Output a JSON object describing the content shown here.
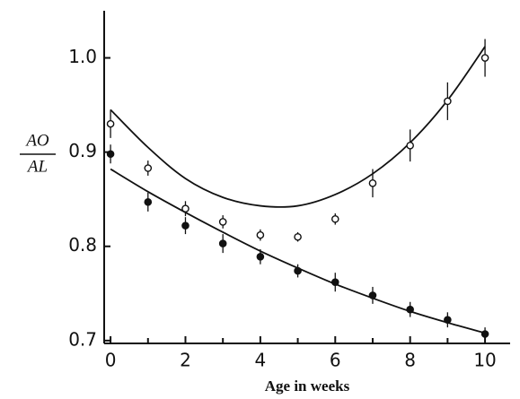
{
  "chart_data": {
    "type": "scatter",
    "x_label": "Age in weeks",
    "y_label_numerator": "AO",
    "y_label_denominator": "AL",
    "x": [
      0,
      1,
      2,
      3,
      4,
      5,
      6,
      7,
      8,
      9,
      10
    ],
    "series": [
      {
        "color": "#111",
        "marker": "open",
        "values": [
          0.93,
          0.883,
          0.84,
          0.826,
          0.812,
          0.81,
          0.829,
          0.867,
          0.907,
          0.954,
          1.0
        ],
        "errors": [
          0.015,
          0.008,
          0.008,
          0.007,
          0.006,
          0.005,
          0.006,
          0.015,
          0.017,
          0.02,
          0.02
        ],
        "fit": [
          0.945,
          0.905,
          0.872,
          0.852,
          0.843,
          0.843,
          0.855,
          0.877,
          0.91,
          0.955,
          1.012
        ]
      },
      {
        "color": "#111",
        "marker": "filled",
        "values": [
          0.898,
          0.847,
          0.822,
          0.803,
          0.789,
          0.774,
          0.762,
          0.748,
          0.733,
          0.722,
          0.707
        ],
        "errors": [
          0.01,
          0.01,
          0.009,
          0.01,
          0.008,
          0.007,
          0.01,
          0.009,
          0.008,
          0.008,
          0.007
        ],
        "fit": [
          0.882,
          0.858,
          0.836,
          0.815,
          0.795,
          0.777,
          0.76,
          0.745,
          0.731,
          0.719,
          0.708
        ]
      }
    ],
    "xlim": [
      -0.17,
      10.67
    ],
    "ylim": [
      0.697,
      1.05
    ],
    "xticks": [
      0,
      2,
      4,
      6,
      8,
      10
    ],
    "xminorticks": [
      1,
      3,
      5,
      7,
      9
    ],
    "yticks": [
      0.7,
      0.8,
      0.9,
      {
        "value": 1,
        "label": "1.0"
      }
    ]
  }
}
